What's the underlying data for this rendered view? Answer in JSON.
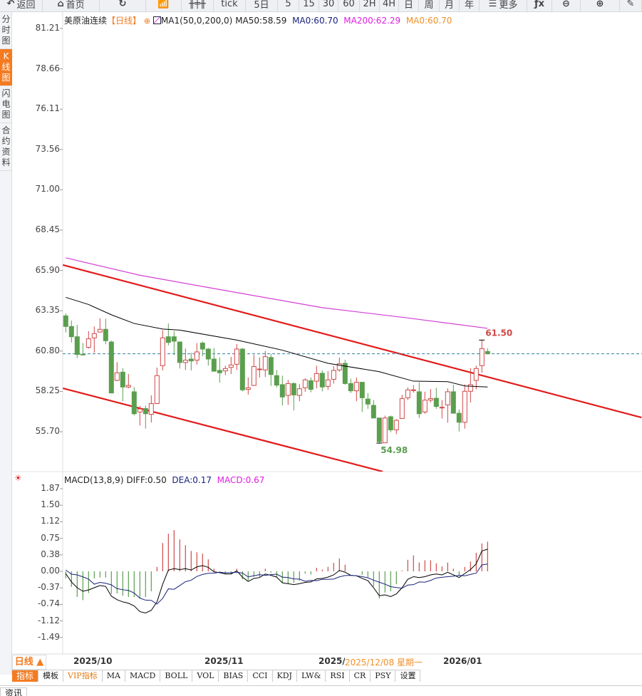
{
  "toolbar": [
    {
      "label": "返回",
      "icon": "back-arrow-icon",
      "w": 60
    },
    {
      "label": "首页",
      "icon": "home-icon",
      "w": 80
    },
    {
      "label": "",
      "icon": "refresh-icon",
      "w": 65
    },
    {
      "label": "",
      "icon": "line-chart-icon",
      "w": 50
    },
    {
      "label": "",
      "icon": "candlestick-icon",
      "w": 45
    },
    {
      "label": "tick",
      "icon": "",
      "w": 45
    },
    {
      "label": "5日",
      "icon": "",
      "w": 45
    },
    {
      "label": "5",
      "icon": "",
      "w": 30
    },
    {
      "label": "15",
      "icon": "",
      "w": 28
    },
    {
      "label": "30",
      "icon": "",
      "w": 27
    },
    {
      "label": "60",
      "icon": "",
      "w": 30
    },
    {
      "label": "2H",
      "icon": "",
      "w": 28
    },
    {
      "label": "4H",
      "icon": "",
      "w": 27
    },
    {
      "label": "日",
      "icon": "",
      "w": 28
    },
    {
      "label": "周",
      "icon": "",
      "w": 29
    },
    {
      "label": "月",
      "icon": "",
      "w": 28
    },
    {
      "label": "年",
      "icon": "",
      "w": 28
    },
    {
      "label": "更多",
      "icon": "menu-icon",
      "w": 67
    },
    {
      "label": "",
      "icon": "fx-icon",
      "w": 35
    },
    {
      "label": "",
      "icon": "zoom-out-icon",
      "w": 40
    },
    {
      "label": "",
      "icon": "zoom-in-icon",
      "w": 55
    },
    {
      "label": "",
      "icon": "pen-icon",
      "w": 31
    }
  ],
  "sidebar": [
    {
      "label": "分时图"
    },
    {
      "label": "K线图",
      "active": true
    },
    {
      "label": "闪电图"
    },
    {
      "label": "合约资料"
    }
  ],
  "legend": {
    "symbol": "美原油连续",
    "period": "【日线】",
    "ma_name": "MA1(50,0,200,0)",
    "ma50": "MA50:58.59",
    "ma0a": "MA0:60.70",
    "ma200": "MA200:62.29",
    "ma0b": "MA0:60.70"
  },
  "macd_legend": {
    "name": "MACD(13,8,9)",
    "diff": "DIFF:0.50",
    "dea": "DEA:0.17",
    "macd": "MACD:0.67"
  },
  "colors": {
    "up": "#d04848",
    "down": "#5a9e4e",
    "ma50": "#000000",
    "ma200": "#d43fd4",
    "channel": "#e31a1a",
    "dea": "#1a237e",
    "macd_label": "#e020e0",
    "ma0": "#f0902a",
    "accent": "#f47b20",
    "price_line": "#2f7fa8"
  },
  "x_axis": {
    "period_button": "日线 ▲",
    "labels": [
      "2025/10",
      "2025/11",
      "2025/1",
      "2026/01"
    ],
    "cursor_date": "2025/12/08 星期一"
  },
  "bottom_tabs": [
    "指标",
    "模板",
    "VIP指标",
    "MA",
    "MACD",
    "BOLL",
    "VOL",
    "BIAS",
    "CCI",
    "KDJ",
    "LW&",
    "RSI",
    "CR",
    "PSY",
    "设置"
  ],
  "footer_tab": "资讯",
  "chart_data": [
    {
      "type": "candlestick",
      "title": "美原油连续",
      "y_ticks": [
        "81.21",
        "78.66",
        "76.11",
        "73.56",
        "71.00",
        "68.45",
        "65.90",
        "63.35",
        "60.80",
        "58.25",
        "55.70"
      ],
      "ylim": [
        53.18,
        81.21
      ],
      "ohlc": [
        [
          63.03,
          63.18,
          61.98,
          62.36
        ],
        [
          62.36,
          62.73,
          61.35,
          61.71
        ],
        [
          61.71,
          62.46,
          60.36,
          60.59
        ],
        [
          60.6,
          61.31,
          60.55,
          60.58
        ],
        [
          61.04,
          62.06,
          60.96,
          61.58
        ],
        [
          61.64,
          62.36,
          60.7,
          61.91
        ],
        [
          62.01,
          62.88,
          61.98,
          62.18
        ],
        [
          62.18,
          62.85,
          61.23,
          61.46
        ],
        [
          61.38,
          61.46,
          58.15,
          58.15
        ],
        [
          58.95,
          60.1,
          58.9,
          59.43
        ],
        [
          59.47,
          59.73,
          57.63,
          58.53
        ],
        [
          58.53,
          59.35,
          58.45,
          58.63
        ],
        [
          58.23,
          58.53,
          56.73,
          56.84
        ],
        [
          56.95,
          57.33,
          56.09,
          57.14
        ],
        [
          57.17,
          57.36,
          55.9,
          56.84
        ],
        [
          56.8,
          58.0,
          56.28,
          57.48
        ],
        [
          57.48,
          59.76,
          57.48,
          59.25
        ],
        [
          59.88,
          62.13,
          59.58,
          61.64
        ],
        [
          61.71,
          62.55,
          61.16,
          61.35
        ],
        [
          61.71,
          62.06,
          60.56,
          61.43
        ],
        [
          61.38,
          61.38,
          59.7,
          60.08
        ],
        [
          60.08,
          60.96,
          59.61,
          60.23
        ],
        [
          60.3,
          60.7,
          59.58,
          60.18
        ],
        [
          60.23,
          61.31,
          59.95,
          60.75
        ],
        [
          61.31,
          61.41,
          60.48,
          60.93
        ],
        [
          60.93,
          61.0,
          59.88,
          60.3
        ],
        [
          60.3,
          61.0,
          59.5,
          59.53
        ],
        [
          59.58,
          60.4,
          58.8,
          59.43
        ],
        [
          59.55,
          59.88,
          59.28,
          59.7
        ],
        [
          59.77,
          60.44,
          59.35,
          59.92
        ],
        [
          59.97,
          61.26,
          59.6,
          60.93
        ],
        [
          60.93,
          61.0,
          58.26,
          58.35
        ],
        [
          58.38,
          59.13,
          58.05,
          58.48
        ],
        [
          58.63,
          60.56,
          58.6,
          59.83
        ],
        [
          59.65,
          60.4,
          59.13,
          59.67
        ],
        [
          59.61,
          60.81,
          59.16,
          60.45
        ],
        [
          60.4,
          60.63,
          58.6,
          59.32
        ],
        [
          59.25,
          59.6,
          58.5,
          58.65
        ],
        [
          58.68,
          59.25,
          57.36,
          57.9
        ],
        [
          58.0,
          58.98,
          57.4,
          58.75
        ],
        [
          58.75,
          58.83,
          57.05,
          58.03
        ],
        [
          58.0,
          58.71,
          57.63,
          58.42
        ],
        [
          58.48,
          59.08,
          58.23,
          58.98
        ],
        [
          58.93,
          59.13,
          58.2,
          58.38
        ],
        [
          58.9,
          59.88,
          58.45,
          59.38
        ],
        [
          59.4,
          59.58,
          58.26,
          58.53
        ],
        [
          58.57,
          59.53,
          58.35,
          58.98
        ],
        [
          59.02,
          59.85,
          58.75,
          59.58
        ],
        [
          59.61,
          60.4,
          59.5,
          60.0
        ],
        [
          60.03,
          60.25,
          58.68,
          58.75
        ],
        [
          58.75,
          59.05,
          58.15,
          58.29
        ],
        [
          58.29,
          59.13,
          57.63,
          58.83
        ],
        [
          58.83,
          58.8,
          56.95,
          57.85
        ],
        [
          57.77,
          58.15,
          57.15,
          57.45
        ],
        [
          57.37,
          57.7,
          56.57,
          56.57
        ],
        [
          56.57,
          56.57,
          54.98,
          55.07
        ],
        [
          55.0,
          56.72,
          55.0,
          56.57
        ],
        [
          56.65,
          56.72,
          55.67,
          55.82
        ],
        [
          55.82,
          56.5,
          55.55,
          56.42
        ],
        [
          56.54,
          58.04,
          56.54,
          57.8
        ],
        [
          57.85,
          58.5,
          57.7,
          58.35
        ],
        [
          58.34,
          58.65,
          58.18,
          58.35
        ],
        [
          58.23,
          58.83,
          56.57,
          56.84
        ],
        [
          56.95,
          58.23,
          56.84,
          57.7
        ],
        [
          57.7,
          58.4,
          57.55,
          57.8
        ],
        [
          57.82,
          58.48,
          57.15,
          57.3
        ],
        [
          57.25,
          57.7,
          56.54,
          57.25
        ],
        [
          57.4,
          58.45,
          56.27,
          58.23
        ],
        [
          58.23,
          58.68,
          56.87,
          56.87
        ],
        [
          56.87,
          57.1,
          55.72,
          56.3
        ],
        [
          56.3,
          58.7,
          55.9,
          58.26
        ],
        [
          58.26,
          59.73,
          57.55,
          58.68
        ],
        [
          58.95,
          59.88,
          58.38,
          59.7
        ],
        [
          59.88,
          61.5,
          59.43,
          60.96
        ],
        [
          60.78,
          60.98,
          60.6,
          60.63
        ]
      ],
      "ma50": [
        [
          0,
          64.2
        ],
        [
          4,
          63.75
        ],
        [
          8,
          63.1
        ],
        [
          12,
          62.55
        ],
        [
          17,
          62.2
        ],
        [
          20,
          62.13
        ],
        [
          30,
          61.5
        ],
        [
          38,
          60.86
        ],
        [
          46,
          60.03
        ],
        [
          55,
          59.5
        ],
        [
          61,
          58.9
        ],
        [
          67,
          58.87
        ],
        [
          70,
          58.6
        ],
        [
          74,
          58.53
        ]
      ],
      "ma200": [
        [
          0,
          66.7
        ],
        [
          13,
          65.6
        ],
        [
          26,
          64.76
        ],
        [
          45,
          63.55
        ],
        [
          60,
          62.9
        ],
        [
          74,
          62.24
        ]
      ],
      "channel_upper": [
        [
          -0.5,
          66.25
        ],
        [
          101,
          56.6
        ]
      ],
      "channel_lower": [
        [
          -0.5,
          58.45
        ],
        [
          55.6,
          53.18
        ]
      ],
      "last_price": 60.63,
      "annotations": [
        {
          "text": "61.50",
          "index": 73,
          "price": 61.5,
          "kind": "high"
        },
        {
          "text": "54.98",
          "index": 55,
          "price": 54.98,
          "kind": "low"
        }
      ]
    },
    {
      "type": "macd",
      "y_ticks": [
        "1.87",
        "1.50",
        "1.12",
        "0.75",
        "0.38",
        "0.00",
        "-0.37",
        "-0.74",
        "-1.12",
        "-1.49"
      ],
      "ylim": [
        -1.49,
        1.87
      ],
      "hist": [
        -0.16,
        -0.35,
        -0.58,
        -0.65,
        -0.49,
        -0.16,
        -0.14,
        -0.14,
        -0.51,
        -0.5,
        -0.55,
        -0.58,
        -0.58,
        -0.61,
        -0.58,
        -0.45,
        0.1,
        0.64,
        0.85,
        0.93,
        0.72,
        0.59,
        0.46,
        0.43,
        0.4,
        0.27,
        0.06,
        -0.02,
        -0.05,
        -0.06,
        0.06,
        -0.18,
        -0.21,
        -0.12,
        -0.13,
        0.06,
        -0.03,
        -0.13,
        -0.26,
        -0.28,
        -0.26,
        -0.21,
        -0.05,
        -0.07,
        0.08,
        0.04,
        0.1,
        0.19,
        0.29,
        0.15,
        0,
        0,
        -0.08,
        -0.13,
        -0.34,
        -0.61,
        -0.48,
        -0.45,
        -0.29,
        0.02,
        0.26,
        0.36,
        0.2,
        0.25,
        0.25,
        0.18,
        0.11,
        0.2,
        0.06,
        -0.1,
        0.1,
        0.22,
        0.42,
        0.63,
        0.67
      ],
      "diff": [
        -0.05,
        -0.24,
        -0.37,
        -0.45,
        -0.42,
        -0.37,
        -0.32,
        -0.34,
        -0.56,
        -0.64,
        -0.69,
        -0.72,
        -0.78,
        -0.91,
        -0.94,
        -0.88,
        -0.69,
        -0.29,
        0.03,
        0.06,
        0.04,
        0.06,
        0.03,
        0.1,
        0.13,
        0.09,
        -0.01,
        -0.03,
        -0.06,
        -0.06,
        0.01,
        -0.13,
        -0.23,
        -0.16,
        -0.14,
        -0.06,
        -0.09,
        -0.13,
        -0.26,
        -0.28,
        -0.3,
        -0.28,
        -0.25,
        -0.24,
        -0.17,
        -0.16,
        -0.13,
        -0.08,
        0.02,
        -0.02,
        -0.09,
        -0.1,
        -0.16,
        -0.21,
        -0.37,
        -0.55,
        -0.53,
        -0.57,
        -0.51,
        -0.37,
        -0.18,
        -0.12,
        -0.14,
        -0.12,
        -0.08,
        -0.06,
        -0.08,
        -0.02,
        -0.08,
        -0.14,
        -0.05,
        0.04,
        0.17,
        0.46,
        0.5
      ]
    }
  ]
}
